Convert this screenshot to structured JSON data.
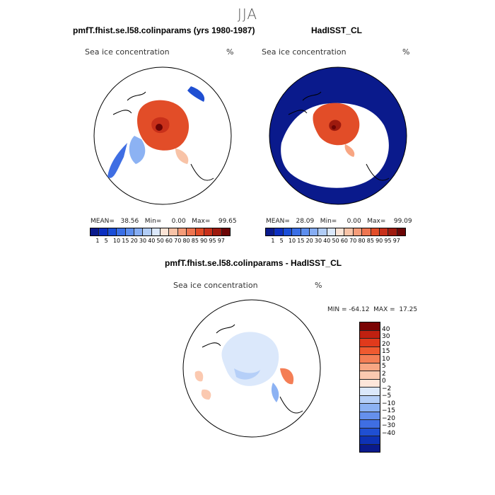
{
  "season": "JJA",
  "panels": [
    {
      "title": "pmfT.fhist.se.l58.colinparams (yrs 1980-1987)",
      "variable": "Sea ice concentration",
      "units": "%",
      "stats": "MEAN=   38.56   Min=     0.00   Max=    99.65"
    },
    {
      "title": "HadISST_CL",
      "variable": "Sea ice concentration",
      "units": "%",
      "stats": "MEAN=   28.09   Min=     0.00   Max=    99.09"
    },
    {
      "title": "pmfT.fhist.se.l58.colinparams - HadISST_CL",
      "variable": "Sea ice concentration",
      "units": "%",
      "stats": "MIN = -64.12  MAX =  17.25"
    }
  ],
  "colorbar_top": {
    "labels": [
      "1",
      "5",
      "10",
      "15",
      "20",
      "30",
      "40",
      "50",
      "60",
      "70",
      "80",
      "85",
      "90",
      "95",
      "97"
    ],
    "colors": [
      "#0a1a8c",
      "#0c2fc0",
      "#1a4ed8",
      "#3a6fe6",
      "#5d8eee",
      "#86adf3",
      "#b1cdf7",
      "#dbe8fb",
      "#fbe3d5",
      "#f8c3a7",
      "#f59c79",
      "#ee7550",
      "#e24d28",
      "#c8301a",
      "#9e1a0e",
      "#6c0505"
    ]
  },
  "colorbar_diff": {
    "labels": [
      "40",
      "30",
      "20",
      "15",
      "10",
      "5",
      "2",
      "0",
      "−2",
      "−5",
      "−10",
      "−15",
      "−20",
      "−30",
      "−40"
    ],
    "colors": [
      "#7a0404",
      "#c02010",
      "#e03a1c",
      "#ef5a30",
      "#f47e55",
      "#f8a683",
      "#fbc9b0",
      "#fde6da",
      "#dbe8fb",
      "#b5cff8",
      "#8cb2f3",
      "#6590ec",
      "#3f6ee3",
      "#1f4fd2",
      "#0e32b5",
      "#0a1a8c"
    ]
  }
}
